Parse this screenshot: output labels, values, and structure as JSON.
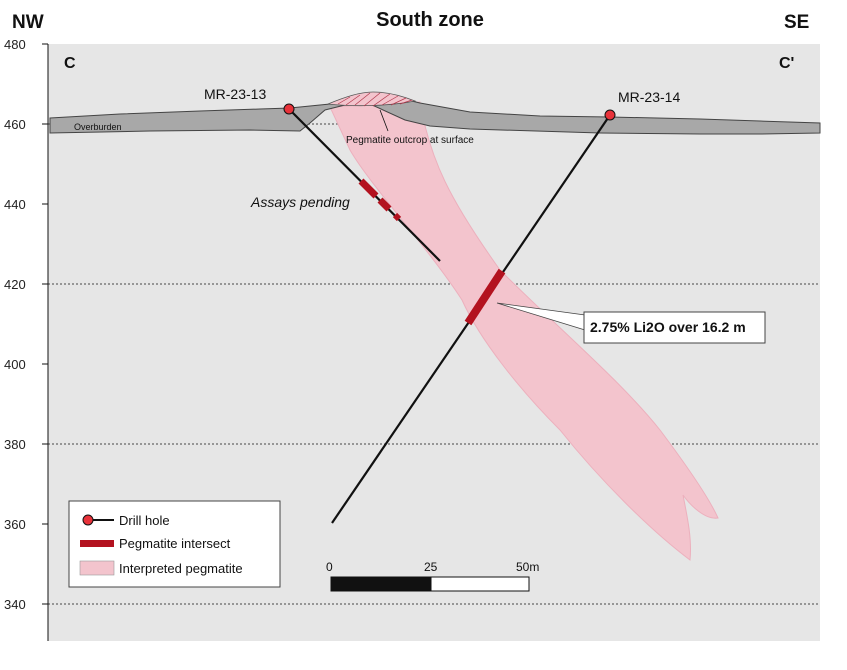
{
  "title": "South zone",
  "corner_left": "NW",
  "corner_right": "SE",
  "section_left": "C",
  "section_right": "C'",
  "elevation_axis": {
    "ticks": [
      "480",
      "460",
      "440",
      "420",
      "400",
      "380",
      "360",
      "340"
    ],
    "range": [
      340,
      480
    ]
  },
  "drill_holes": [
    {
      "name": "MR-23-13"
    },
    {
      "name": "MR-23-14"
    }
  ],
  "labels": {
    "overburden": "Overburden",
    "outcrop": "Pegmatite outcrop at surface",
    "assays_pending": "Assays pending",
    "intercept_callout": "2.75% Li2O over 16.2 m"
  },
  "legend": {
    "drill_hole": "Drill hole",
    "pegmatite_intersect": "Pegmatite intersect",
    "interpreted_pegmatite": "Interpreted pegmatite"
  },
  "scale_bar": {
    "ticks": [
      "0",
      "25",
      "50m"
    ]
  },
  "colors": {
    "background": "#e6e6e6",
    "overburden": "#a8a8a8",
    "pegmatite": "#f3c4cd",
    "intersect": "#b3121f",
    "collar": "#e8323a"
  }
}
